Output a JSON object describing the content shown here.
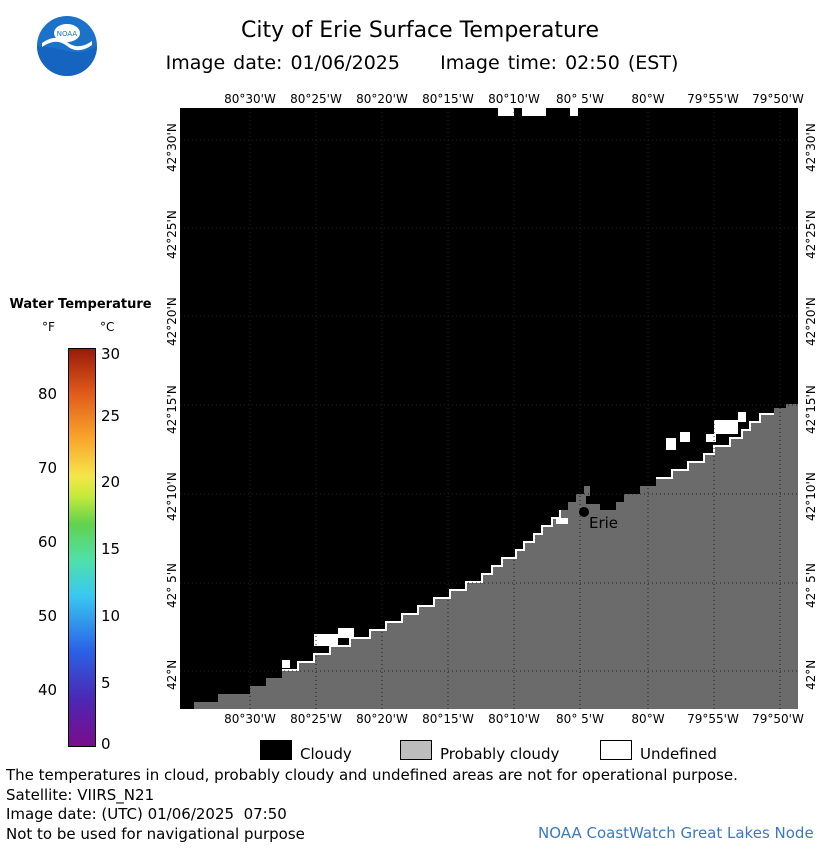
{
  "header": {
    "title": "City of Erie Surface Temperature",
    "subtitle": "Image date: 01/06/2025     Image time: 02:50 (EST)",
    "logo_text": "NOAA"
  },
  "map": {
    "longitude_ticks_top": [
      "80°30'W",
      "80°25'W",
      "80°20'W",
      "80°15'W",
      "80°10'W",
      "80° 5'W",
      "80°W",
      "79°55'W",
      "79°50'W"
    ],
    "longitude_ticks_bottom": [
      "80°30'W",
      "80°25'W",
      "80°20'W",
      "80°15'W",
      "80°10'W",
      "80° 5'W",
      "80°W",
      "79°55'W",
      "79°50'W"
    ],
    "latitude_ticks_left": [
      "42°30'N",
      "42°25'N",
      "42°20'N",
      "42°15'N",
      "42°10'N",
      "42° 5'N",
      "42°N"
    ],
    "latitude_ticks_right": [
      "42°30'N",
      "42°25'N",
      "42°20'N",
      "42°15'N",
      "42°10'N",
      "42° 5'N",
      "42°N"
    ],
    "city_label": "Erie",
    "colors": {
      "cloudy": "#000000",
      "land": "#6b6b6b",
      "undefined": "#ffffff",
      "grid": "#222222"
    }
  },
  "legend": {
    "title": "Water Temperature",
    "unit_f": "°F",
    "unit_c": "°C",
    "f_ticks": [
      "80",
      "70",
      "60",
      "50",
      "40"
    ],
    "c_ticks": [
      "30",
      "25",
      "20",
      "15",
      "10",
      "5",
      "0"
    ]
  },
  "key": {
    "cloudy": "Cloudy",
    "probably_cloudy": "Probably cloudy",
    "undefined": "Undefined",
    "colors": {
      "cloudy": "#000000",
      "probably_cloudy": "#bdbdbd",
      "undefined": "#ffffff"
    }
  },
  "footer": {
    "note": "The temperatures in cloud, probably cloudy and undefined areas are not for operational purpose.",
    "satellite": "Satellite: VIIRS_N21",
    "image_date_utc": "Image date: (UTC) 01/06/2025  07:50",
    "navigation_warning": "Not to be used for navigational purpose",
    "credit": "NOAA CoastWatch Great Lakes Node"
  }
}
